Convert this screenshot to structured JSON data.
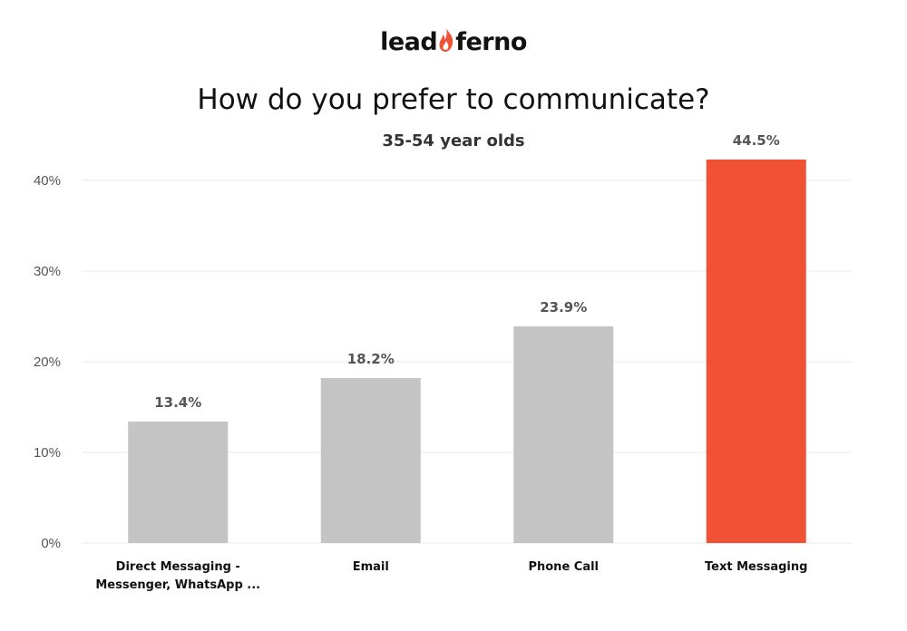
{
  "logo": {
    "left": "lead",
    "right": "ferno",
    "flame_icon": "flame-icon",
    "flame_color": "#f15236"
  },
  "chart_data": {
    "type": "bar",
    "title": "How do you prefer to communicate?",
    "subtitle": "35-54 year olds",
    "categories": [
      [
        "Direct Messaging -",
        "Messenger, WhatsApp ..."
      ],
      [
        "Email"
      ],
      [
        "Phone Call"
      ],
      [
        "Text Messaging"
      ]
    ],
    "values": [
      13.4,
      18.2,
      23.9,
      44.5
    ],
    "value_labels": [
      "13.4%",
      "18.2%",
      "23.9%",
      "44.5%"
    ],
    "ylim": [
      0,
      42.3
    ],
    "yticks": [
      0,
      10,
      20,
      30,
      40
    ],
    "ytick_labels": [
      "0%",
      "10%",
      "20%",
      "30%",
      "40%"
    ],
    "grid": true,
    "colors": [
      "#c4c4c4",
      "#c4c4c4",
      "#c4c4c4",
      "#f15236"
    ]
  }
}
